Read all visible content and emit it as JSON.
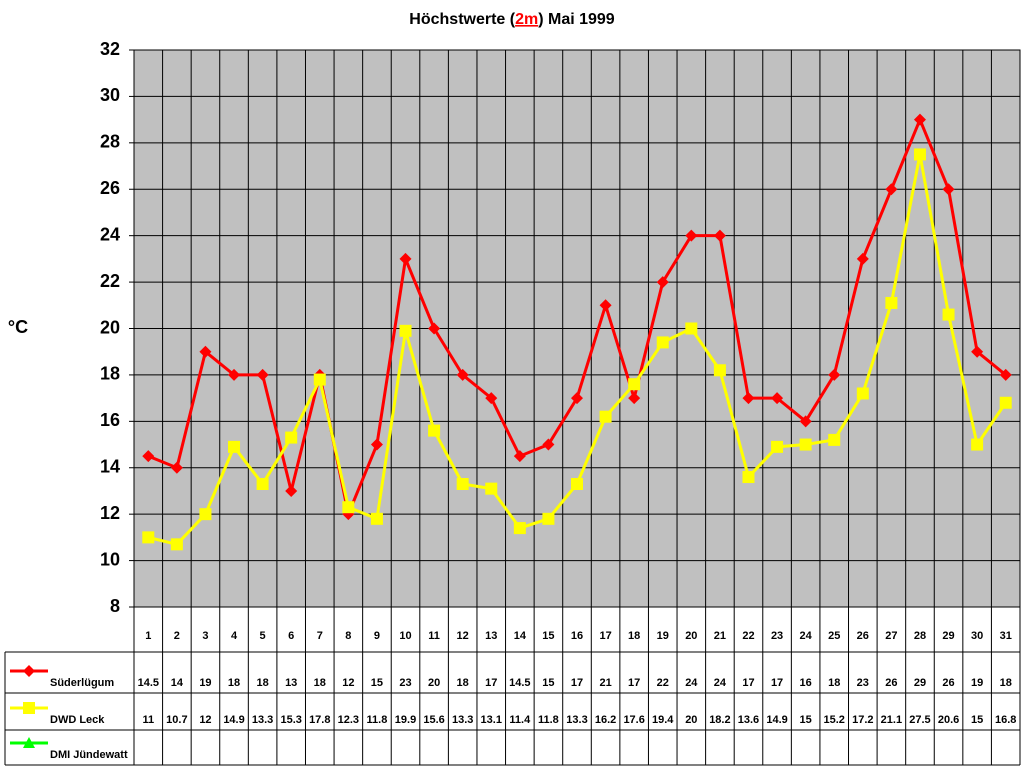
{
  "chart_data": {
    "type": "line",
    "title_parts": [
      "Höchstwerte (",
      "2m",
      ") Mai 1999"
    ],
    "ylabel": "°C",
    "categories": [
      "1",
      "2",
      "3",
      "4",
      "5",
      "6",
      "7",
      "8",
      "9",
      "10",
      "11",
      "12",
      "13",
      "14",
      "15",
      "16",
      "17",
      "18",
      "19",
      "20",
      "21",
      "22",
      "23",
      "24",
      "25",
      "26",
      "27",
      "28",
      "29",
      "30",
      "31"
    ],
    "series": [
      {
        "name": "Süderlügum",
        "color": "#ff0000",
        "marker": "diamond",
        "values": [
          14.5,
          14,
          19,
          18,
          18,
          13,
          18,
          12,
          15,
          23,
          20,
          18,
          17,
          14.5,
          15,
          17,
          21,
          17,
          22,
          24,
          24,
          17,
          17,
          16,
          18,
          23,
          26,
          29,
          26,
          19,
          18
        ]
      },
      {
        "name": "DWD Leck",
        "color": "#ffff00",
        "marker": "square",
        "values": [
          11,
          10.7,
          12,
          14.9,
          13.3,
          15.3,
          17.8,
          12.3,
          11.8,
          19.9,
          15.6,
          13.3,
          13.1,
          11.4,
          11.8,
          13.3,
          16.2,
          17.6,
          19.4,
          20,
          18.2,
          13.6,
          14.9,
          15,
          15.2,
          17.2,
          21.1,
          27.5,
          20.6,
          15,
          16.8
        ]
      },
      {
        "name": "DMI Jündewatt",
        "color": "#00ff00",
        "marker": "triangle",
        "values": [
          null,
          null,
          null,
          null,
          null,
          null,
          null,
          null,
          null,
          null,
          null,
          null,
          null,
          null,
          null,
          null,
          null,
          null,
          null,
          null,
          null,
          null,
          null,
          null,
          null,
          null,
          null,
          null,
          null,
          null,
          null
        ]
      }
    ],
    "ylim": [
      8,
      32
    ],
    "yticks": [
      8,
      10,
      12,
      14,
      16,
      18,
      20,
      22,
      24,
      26,
      28,
      30,
      32
    ],
    "grid": true,
    "plot_background": "#c0c0c0"
  }
}
